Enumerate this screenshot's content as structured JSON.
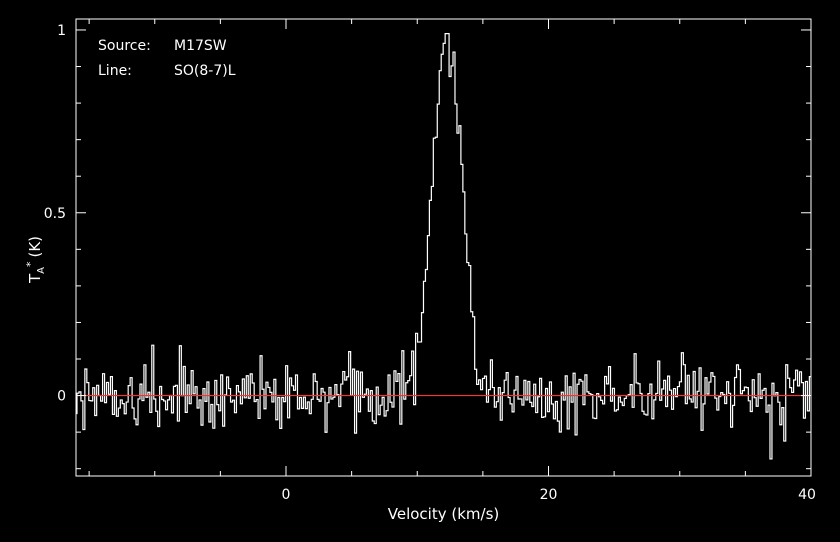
{
  "chart_data": {
    "type": "line",
    "title": "",
    "xlabel": "Velocity (km/s)",
    "ylabel": "TA* (K)",
    "ylabel_parts": {
      "main": "T",
      "sub": "A",
      "sup": "*",
      "unit": "(K)"
    },
    "xlim": [
      -16,
      40
    ],
    "ylim": [
      -0.22,
      1.03
    ],
    "x_ticks": [
      0,
      20,
      40
    ],
    "y_ticks": [
      0,
      0.5,
      1
    ],
    "x_tick_labels": [
      "0",
      "20",
      "40"
    ],
    "y_tick_labels": [
      "0",
      "0.5",
      "1"
    ],
    "grid": false,
    "background_color": "#000000",
    "foreground_color": "#ffffff",
    "annotations": {
      "source_label": "Source:",
      "source_value": "M17SW",
      "line_label": "Line:",
      "line_value": "SO(8-7)L"
    },
    "baseline": {
      "y": 0,
      "color": "#ff3030"
    },
    "series": [
      {
        "style": "step",
        "color": "#ffffff",
        "profile": {
          "center_kms": 12.3,
          "peak_K": 0.99,
          "fwhm_kms": 2.6,
          "noise_rms_K": 0.045,
          "channel_width_kms": 0.15
        }
      }
    ]
  }
}
